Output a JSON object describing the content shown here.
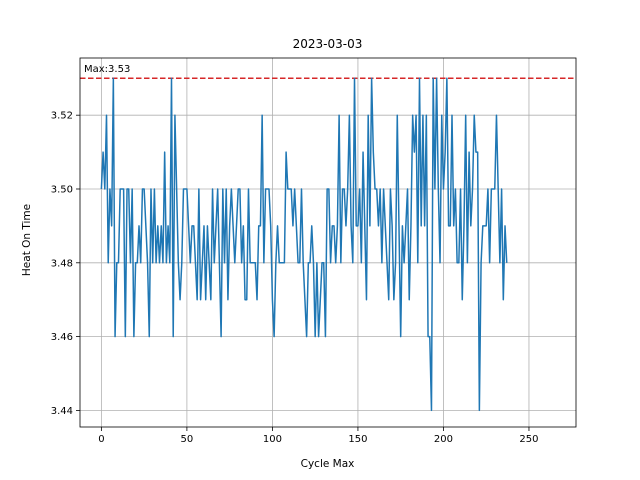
{
  "chart_data": {
    "type": "line",
    "title": "2023-03-03",
    "xlabel": "Cycle Max",
    "ylabel": "Heat On Time",
    "xlim": [
      -12.5,
      277.5
    ],
    "ylim": [
      3.4355,
      3.5355
    ],
    "xticks": [
      0,
      50,
      100,
      150,
      200,
      250
    ],
    "yticks": [
      3.44,
      3.46,
      3.48,
      3.5,
      3.52
    ],
    "ytick_labels": [
      "3.44",
      "3.46",
      "3.48",
      "3.50",
      "3.52"
    ],
    "grid": true,
    "line_color": "#1f77b4",
    "max_line": {
      "value": 3.53,
      "color": "#d62728",
      "style": "dashed",
      "label": "Max:3.53"
    },
    "series": [
      {
        "values": [
          3.5,
          3.51,
          3.5,
          3.52,
          3.48,
          3.5,
          3.49,
          3.53,
          3.46,
          3.48,
          3.48,
          3.5,
          3.5,
          3.5,
          3.46,
          3.5,
          3.5,
          3.48,
          3.5,
          3.46,
          3.48,
          3.48,
          3.49,
          3.48,
          3.5,
          3.5,
          3.49,
          3.48,
          3.46,
          3.5,
          3.48,
          3.5,
          3.48,
          3.49,
          3.48,
          3.49,
          3.48,
          3.51,
          3.48,
          3.49,
          3.48,
          3.53,
          3.46,
          3.52,
          3.5,
          3.48,
          3.47,
          3.48,
          3.5,
          3.5,
          3.5,
          3.49,
          3.48,
          3.49,
          3.49,
          3.48,
          3.47,
          3.5,
          3.47,
          3.48,
          3.49,
          3.47,
          3.49,
          3.48,
          3.47,
          3.5,
          3.48,
          3.49,
          3.5,
          3.48,
          3.46,
          3.5,
          3.48,
          3.5,
          3.47,
          3.49,
          3.5,
          3.49,
          3.48,
          3.49,
          3.5,
          3.5,
          3.48,
          3.49,
          3.47,
          3.47,
          3.5,
          3.48,
          3.48,
          3.48,
          3.48,
          3.47,
          3.49,
          3.49,
          3.52,
          3.48,
          3.5,
          3.5,
          3.5,
          3.49,
          3.47,
          3.46,
          3.48,
          3.49,
          3.48,
          3.48,
          3.48,
          3.48,
          3.51,
          3.5,
          3.5,
          3.5,
          3.49,
          3.5,
          3.49,
          3.48,
          3.48,
          3.5,
          3.48,
          3.47,
          3.46,
          3.48,
          3.48,
          3.49,
          3.48,
          3.46,
          3.48,
          3.46,
          3.47,
          3.48,
          3.48,
          3.46,
          3.5,
          3.5,
          3.48,
          3.49,
          3.49,
          3.48,
          3.49,
          3.52,
          3.48,
          3.5,
          3.5,
          3.49,
          3.5,
          3.52,
          3.49,
          3.48,
          3.53,
          3.49,
          3.49,
          3.5,
          3.48,
          3.51,
          3.49,
          3.47,
          3.52,
          3.49,
          3.53,
          3.51,
          3.5,
          3.5,
          3.49,
          3.5,
          3.48,
          3.5,
          3.49,
          3.48,
          3.47,
          3.5,
          3.49,
          3.47,
          3.48,
          3.52,
          3.49,
          3.46,
          3.49,
          3.48,
          3.49,
          3.5,
          3.47,
          3.49,
          3.52,
          3.51,
          3.52,
          3.48,
          3.53,
          3.49,
          3.52,
          3.49,
          3.52,
          3.46,
          3.46,
          3.44,
          3.53,
          3.5,
          3.53,
          3.5,
          3.48,
          3.52,
          3.5,
          3.51,
          3.53,
          3.49,
          3.49,
          3.52,
          3.49,
          3.5,
          3.48,
          3.48,
          3.5,
          3.47,
          3.49,
          3.52,
          3.48,
          3.51,
          3.49,
          3.5,
          3.52,
          3.51,
          3.51,
          3.44,
          3.48,
          3.49,
          3.49,
          3.49,
          3.5,
          3.48,
          3.5,
          3.5,
          3.5,
          3.52,
          3.5,
          3.48,
          3.5,
          3.47,
          3.49,
          3.48
        ]
      }
    ]
  }
}
